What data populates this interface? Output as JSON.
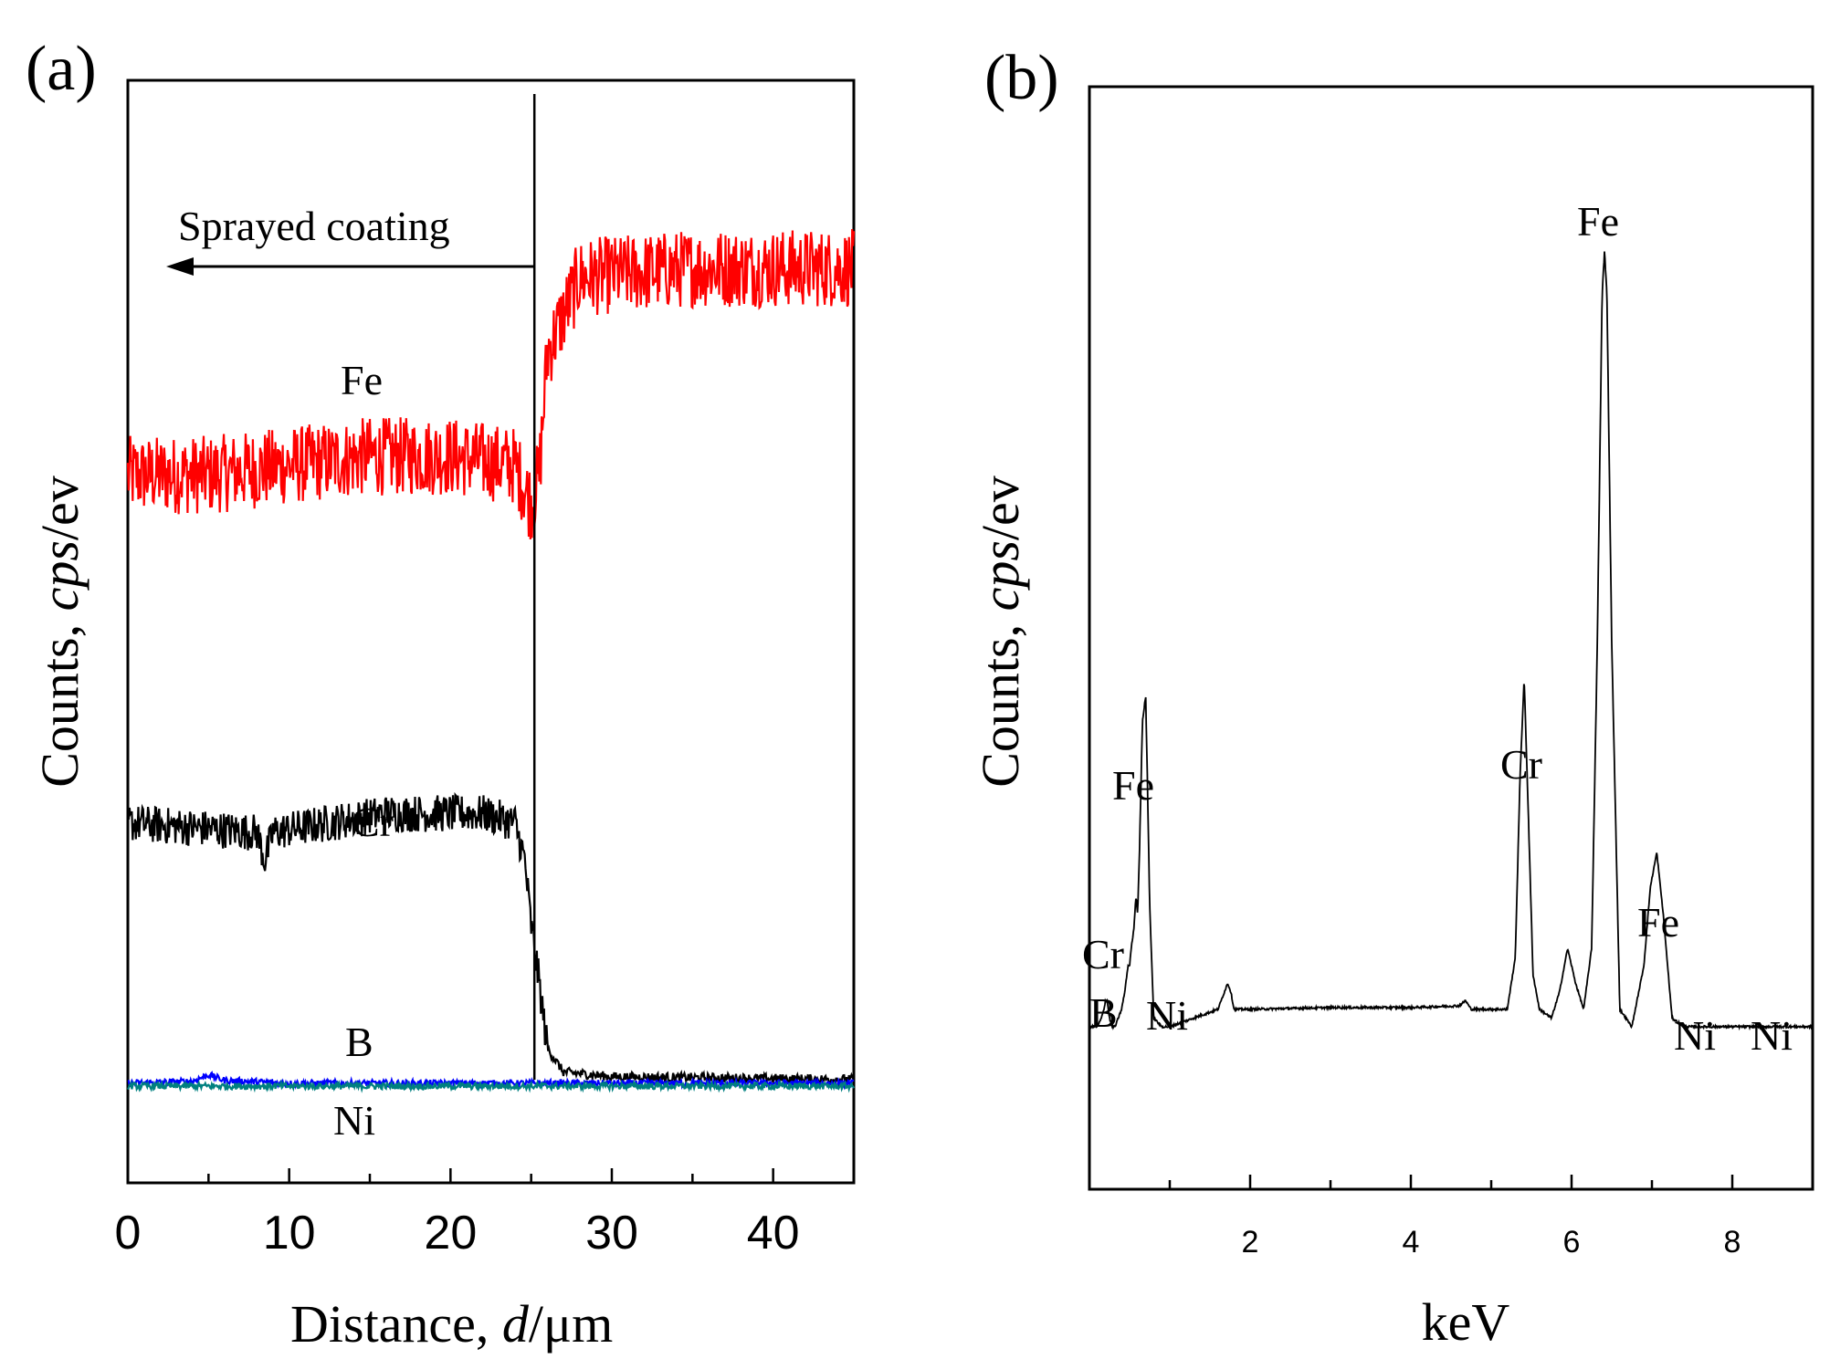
{
  "chart_data": [
    {
      "panel": "(a)",
      "type": "line",
      "xlabel_main": "Distance, ",
      "xlabel_italic": "d",
      "xlabel_unit": "/μm",
      "ylabel_main": "Counts, ",
      "ylabel_italic": "cps",
      "ylabel_unit": "/ev",
      "xlim": [
        0,
        45
      ],
      "ylim": [
        0,
        100
      ],
      "xticks": [
        0,
        10,
        20,
        30,
        40
      ],
      "interface_x": 25.2,
      "annotation": "Sprayed coating",
      "series": [
        {
          "name": "Fe",
          "color": "#ff0000",
          "x": [
            0,
            5,
            10,
            15,
            20,
            24,
            25,
            25.5,
            26,
            28,
            35,
            45
          ],
          "values": [
            65,
            65,
            66,
            67,
            67,
            66,
            62,
            65,
            78,
            86,
            87,
            87
          ]
        },
        {
          "name": "Cr",
          "color": "#000000",
          "x": [
            0,
            8,
            8.5,
            9,
            16,
            22,
            24,
            24.6,
            25,
            25.5,
            26,
            27,
            30,
            45
          ],
          "values": [
            28,
            27,
            24,
            27,
            29,
            29,
            28,
            24,
            17,
            11,
            4,
            1.5,
            1,
            0.7
          ]
        },
        {
          "name": "B",
          "color": "#0000ff",
          "x": [
            0,
            4,
            5,
            6,
            10,
            45
          ],
          "values": [
            0.3,
            0.5,
            1.2,
            0.6,
            0.3,
            0.3
          ]
        },
        {
          "name": "Ni",
          "color": "#008080",
          "x": [
            0,
            45
          ],
          "values": [
            0,
            0
          ]
        }
      ],
      "labels": [
        "Fe",
        "Cr",
        "B",
        "Ni"
      ]
    },
    {
      "panel": "(b)",
      "type": "line",
      "xlabel": "keV",
      "ylabel_main": "Counts, ",
      "ylabel_italic": "cps",
      "ylabel_unit": "/ev",
      "xlim": [
        0,
        9
      ],
      "ylim": [
        0,
        100
      ],
      "xticks": [
        2,
        4,
        6,
        8
      ],
      "xticks_minor": [
        1,
        3,
        5,
        7,
        9
      ],
      "series": [
        {
          "name": "spectrum",
          "color": "#000000",
          "x": [
            0,
            0.1,
            0.15,
            0.18,
            0.2,
            0.22,
            0.25,
            0.28,
            0.32,
            0.36,
            0.4,
            0.44,
            0.48,
            0.5,
            0.52,
            0.55,
            0.58,
            0.6,
            0.62,
            0.66,
            0.7,
            0.72,
            0.75,
            0.8,
            0.9,
            1.0,
            1.3,
            1.6,
            1.68,
            1.72,
            1.76,
            1.8,
            2.0,
            3.0,
            4.0,
            4.6,
            4.68,
            4.75,
            5.0,
            5.2,
            5.3,
            5.36,
            5.41,
            5.46,
            5.52,
            5.6,
            5.75,
            5.85,
            5.95,
            6.05,
            6.15,
            6.25,
            6.32,
            6.38,
            6.41,
            6.44,
            6.5,
            6.6,
            6.75,
            6.9,
            6.98,
            7.06,
            7.14,
            7.25,
            7.4,
            7.6,
            8.0,
            9.0
          ],
          "values": [
            11,
            11,
            12,
            13,
            14,
            14,
            12,
            11,
            11,
            12,
            13,
            15,
            18,
            18,
            20,
            22,
            26,
            24,
            30,
            46,
            49,
            40,
            25,
            12,
            11,
            11,
            12,
            13,
            15,
            16,
            15,
            13,
            13,
            13.2,
            13.2,
            13.4,
            14,
            13,
            13,
            13,
            19,
            40,
            51,
            36,
            17,
            13,
            12,
            15,
            20,
            16,
            13,
            20,
            55,
            95,
            100,
            95,
            55,
            13,
            11,
            18,
            27,
            31,
            24,
            12,
            11,
            11,
            11,
            11
          ]
        }
      ],
      "labels": [
        "Fe",
        "Cr",
        "Fe",
        "Fe",
        "Cr",
        "B",
        "Ni",
        "Ni",
        "Ni"
      ]
    }
  ]
}
